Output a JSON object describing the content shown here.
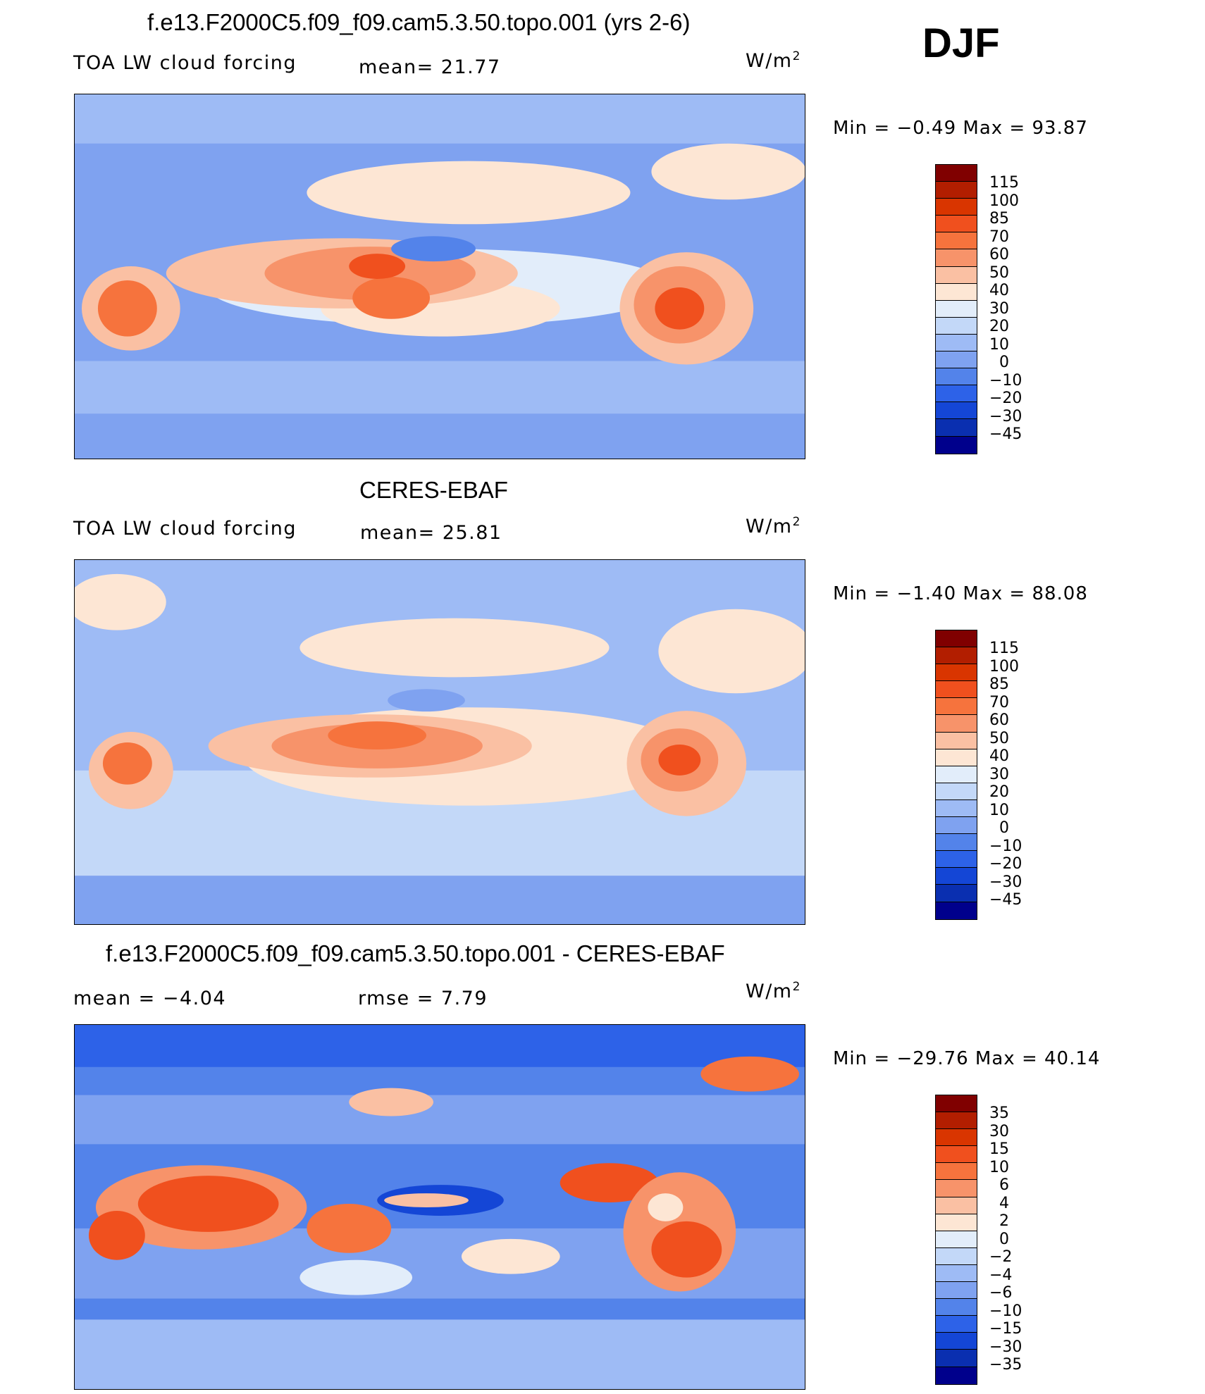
{
  "season": "DJF",
  "panels": [
    {
      "title": "f.e13.F2000C5.f09_f09.cam5.3.50.topo.001 (yrs 2-6)",
      "left_label": "TOA LW cloud forcing",
      "mid_label": "mean=  21.77",
      "unit": "W/m",
      "unit_sup": "2",
      "min_max": "Min  =    −0.49  Max  =    93.87"
    },
    {
      "title": "CERES-EBAF",
      "left_label": "TOA LW cloud forcing",
      "mid_label": "mean=  25.81",
      "unit": "W/m",
      "unit_sup": "2",
      "min_max": "Min  =    −1.40  Max  =    88.08"
    },
    {
      "title": "f.e13.F2000C5.f09_f09.cam5.3.50.topo.001 - CERES-EBAF",
      "left_label": "mean  =    −4.04",
      "mid_label": "rmse  =      7.79",
      "unit": "W/m",
      "unit_sup": "2",
      "min_max": "Min  = −29.76  Max  =    40.14"
    }
  ],
  "colorbars": {
    "absolute": {
      "levels": [
        "115",
        "100",
        "85",
        "70",
        "60",
        "50",
        "40",
        "30",
        "20",
        "10",
        "0",
        "−10",
        "−20",
        "−30",
        "−45"
      ],
      "colors": [
        "#800000",
        "#b21e00",
        "#d93500",
        "#f0501e",
        "#f6733d",
        "#f7936a",
        "#fac0a3",
        "#fde6d4",
        "#e2edfa",
        "#c3d8f8",
        "#9ebbf5",
        "#7fa2f0",
        "#5383ea",
        "#2d62e8",
        "#1446d6",
        "#0a2fb0",
        "#00008c"
      ]
    },
    "difference": {
      "levels": [
        "35",
        "30",
        "15",
        "10",
        "6",
        "4",
        "2",
        "0",
        "−2",
        "−4",
        "−6",
        "−10",
        "−15",
        "−30",
        "−35"
      ],
      "colors": [
        "#800000",
        "#b21e00",
        "#d93500",
        "#f0501e",
        "#f6733d",
        "#f7936a",
        "#fac0a3",
        "#fde6d4",
        "#e2edfa",
        "#c3d8f8",
        "#9ebbf5",
        "#7fa2f0",
        "#5383ea",
        "#2d62e8",
        "#1446d6",
        "#0a2fb0",
        "#00008c"
      ]
    }
  }
}
